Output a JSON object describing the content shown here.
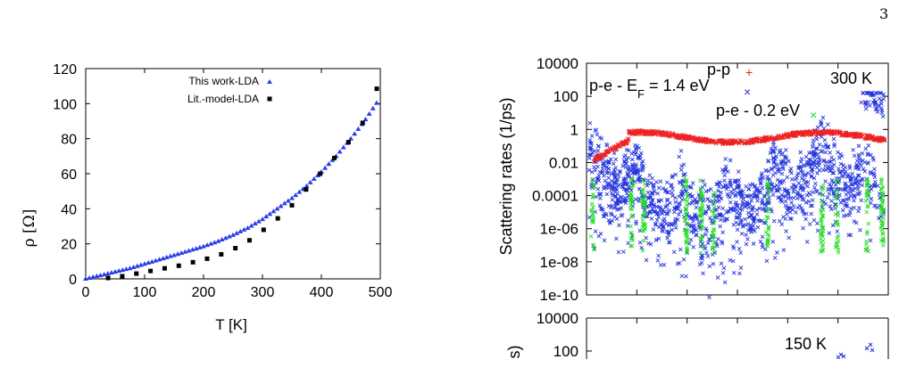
{
  "page": {
    "number": "3"
  },
  "chart_data": [
    {
      "type": "scatter",
      "title": "",
      "xlabel": "T [K]",
      "ylabel": "ρ [Ω]",
      "xlim": [
        0,
        500
      ],
      "ylim": [
        0,
        120
      ],
      "x_ticks": [
        "0",
        "100",
        "200",
        "300",
        "400",
        "500"
      ],
      "y_ticks": [
        "0",
        "20",
        "40",
        "60",
        "80",
        "100",
        "120"
      ],
      "grid": false,
      "legend_position": "top-right",
      "series": [
        {
          "name": "This work-LDA",
          "marker": "triangle",
          "color": "#2b3ee6",
          "x": [
            0,
            25,
            50,
            75,
            100,
            125,
            150,
            175,
            200,
            225,
            250,
            275,
            300,
            325,
            350,
            375,
            400,
            425,
            450,
            475,
            500
          ],
          "y": [
            0,
            2,
            4,
            6,
            8.5,
            11,
            13.5,
            16,
            18.5,
            21.5,
            25,
            29,
            34,
            40,
            46,
            53,
            61,
            70,
            80,
            91,
            103.5
          ]
        },
        {
          "name": "Lit.-model-LDA",
          "marker": "square",
          "color": "#000000",
          "x": [
            38,
            62,
            86,
            110,
            134,
            158,
            182,
            206,
            230,
            254,
            278,
            302,
            326,
            350,
            374,
            398,
            422,
            446,
            470,
            494
          ],
          "y": [
            0.5,
            1.5,
            3,
            4.5,
            6,
            7.5,
            9.5,
            11.5,
            14,
            17.5,
            22,
            28,
            34.5,
            42,
            51,
            60,
            69,
            78,
            89,
            108.5
          ]
        }
      ]
    },
    {
      "type": "scatter",
      "title": "",
      "xlabel": "",
      "ylabel": "Scattering rates (1/ps)",
      "y_scale": "log",
      "ylim": [
        1e-10,
        10000
      ],
      "y_ticks": [
        "10000",
        "100",
        "1",
        "0.01",
        "0.0001",
        "1e-06",
        "1e-08",
        "1e-10"
      ],
      "grid": false,
      "annotations": [
        "300 K"
      ],
      "legend_position": "top-center",
      "series": [
        {
          "name": "p-p",
          "color": "#ee2222"
        },
        {
          "name_parts": [
            "p-e - E",
            "F",
            " = 1.4 eV"
          ],
          "color": "#2233dd"
        },
        {
          "name": "p-e - 0.2 eV",
          "color": "#22dd22"
        }
      ]
    },
    {
      "type": "scatter",
      "title": "",
      "ylabel_visible": "s)",
      "y_scale": "log",
      "y_ticks": [
        "10000",
        "100"
      ],
      "annotations": [
        "150 K"
      ]
    }
  ]
}
